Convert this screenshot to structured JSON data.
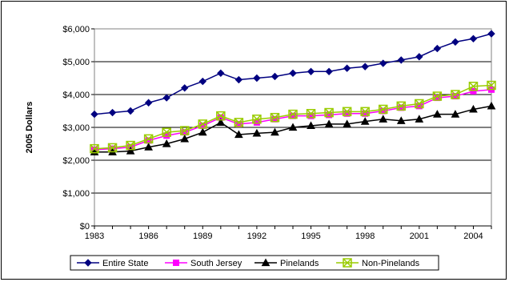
{
  "chart_data": {
    "type": "line",
    "title": "",
    "xlabel": "",
    "ylabel": "2005 Dollars",
    "x": [
      1983,
      1984,
      1985,
      1986,
      1987,
      1988,
      1989,
      1990,
      1991,
      1992,
      1993,
      1994,
      1995,
      1996,
      1997,
      1998,
      1999,
      2000,
      2001,
      2002,
      2003,
      2004,
      2005
    ],
    "xtick_labels": [
      "1983",
      "1986",
      "1989",
      "1992",
      "1995",
      "1998",
      "2001",
      "2004"
    ],
    "xtick_values": [
      1983,
      1986,
      1989,
      1992,
      1995,
      1998,
      2001,
      2004
    ],
    "ylim": [
      0,
      6000
    ],
    "ytick_values": [
      0,
      1000,
      2000,
      3000,
      4000,
      5000,
      6000
    ],
    "ytick_labels": [
      "$0",
      "$1,000",
      "$2,000",
      "$3,000",
      "$4,000",
      "$5,000",
      "$6,000"
    ],
    "grid": "horizontal",
    "legend_position": "bottom",
    "series": [
      {
        "name": "Entire State",
        "color": "#000080",
        "marker": "diamond",
        "values": [
          3400,
          3450,
          3500,
          3750,
          3900,
          4200,
          4400,
          4650,
          4450,
          4500,
          4550,
          4650,
          4700,
          4700,
          4800,
          4850,
          4950,
          5050,
          5150,
          5400,
          5600,
          5700,
          5850
        ]
      },
      {
        "name": "South Jersey",
        "color": "#ff00ff",
        "marker": "square",
        "values": [
          2320,
          2350,
          2400,
          2600,
          2750,
          2850,
          3050,
          3300,
          3100,
          3150,
          3250,
          3350,
          3350,
          3380,
          3420,
          3420,
          3500,
          3600,
          3650,
          3900,
          3950,
          4100,
          4150
        ]
      },
      {
        "name": "Pinelands",
        "color": "#000000",
        "marker": "triangle",
        "values": [
          2250,
          2250,
          2280,
          2400,
          2500,
          2650,
          2850,
          3150,
          2780,
          2820,
          2850,
          3000,
          3050,
          3100,
          3100,
          3180,
          3250,
          3200,
          3250,
          3400,
          3400,
          3550,
          3650
        ]
      },
      {
        "name": "Non-Pinelands",
        "color": "#99cc00",
        "marker": "square-x",
        "values": [
          2350,
          2380,
          2450,
          2650,
          2850,
          2900,
          3100,
          3350,
          3150,
          3250,
          3300,
          3400,
          3420,
          3450,
          3480,
          3480,
          3550,
          3650,
          3720,
          3950,
          4000,
          4250,
          4280
        ]
      }
    ]
  }
}
